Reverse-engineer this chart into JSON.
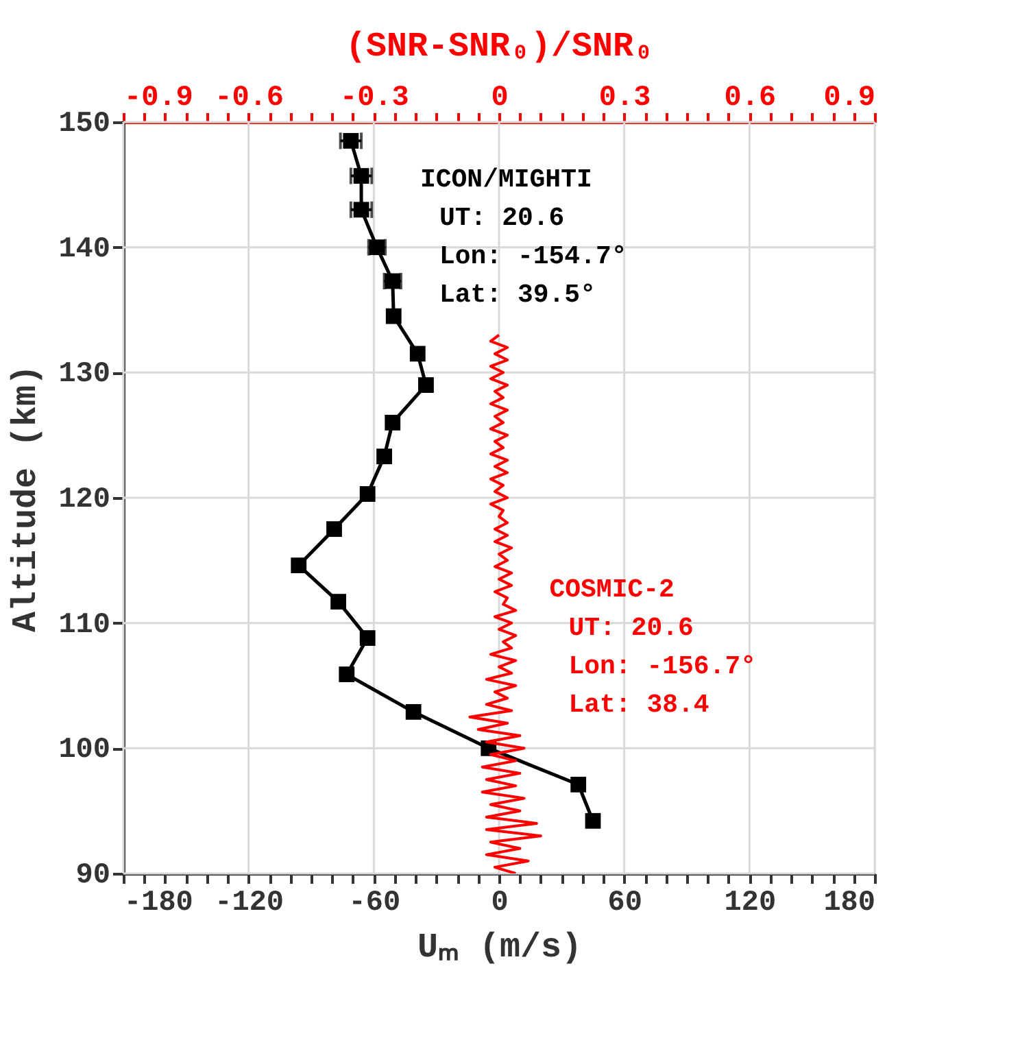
{
  "chart_data": {
    "type": "line",
    "xlabel": "Uₘ (m/s)",
    "x2label": "(SNR-SNR₀)/SNR₀",
    "ylabel": "Altitude (km)",
    "xlim": [
      -180,
      180
    ],
    "xticks": [
      -180,
      {
        "value": -170,
        "label": null
      },
      {
        "value": -160,
        "label": null
      },
      {
        "value": -150,
        "label": null
      },
      {
        "value": -140,
        "label": null
      },
      {
        "value": -130,
        "label": null
      },
      -120,
      {
        "value": -110,
        "label": null
      },
      {
        "value": -100,
        "label": null
      },
      {
        "value": -90,
        "label": null
      },
      {
        "value": -80,
        "label": null
      },
      {
        "value": -70,
        "label": null
      },
      -60,
      {
        "value": -50,
        "label": null
      },
      {
        "value": -40,
        "label": null
      },
      {
        "value": -30,
        "label": null
      },
      {
        "value": -20,
        "label": null
      },
      {
        "value": -10,
        "label": null
      },
      0,
      {
        "value": 10,
        "label": null
      },
      {
        "value": 20,
        "label": null
      },
      {
        "value": 30,
        "label": null
      },
      {
        "value": 40,
        "label": null
      },
      {
        "value": 50,
        "label": null
      },
      60,
      {
        "value": 70,
        "label": null
      },
      {
        "value": 80,
        "label": null
      },
      {
        "value": 90,
        "label": null
      },
      {
        "value": 100,
        "label": null
      },
      {
        "value": 110,
        "label": null
      },
      120,
      {
        "value": 130,
        "label": null
      },
      {
        "value": 140,
        "label": null
      },
      {
        "value": 150,
        "label": null
      },
      {
        "value": 160,
        "label": null
      },
      {
        "value": 170,
        "label": null
      },
      180
    ],
    "x2lim": [
      -0.9,
      0.9
    ],
    "x2ticks": [
      -0.9,
      {
        "value": -0.85,
        "label": null
      },
      {
        "value": -0.8,
        "label": null
      },
      {
        "value": -0.75,
        "label": null
      },
      {
        "value": -0.7,
        "label": null
      },
      {
        "value": -0.65,
        "label": null
      },
      -0.6,
      {
        "value": -0.55,
        "label": null
      },
      {
        "value": -0.5,
        "label": null
      },
      {
        "value": -0.45,
        "label": null
      },
      {
        "value": -0.4,
        "label": null
      },
      {
        "value": -0.35,
        "label": null
      },
      -0.3,
      {
        "value": -0.25,
        "label": null
      },
      {
        "value": -0.2,
        "label": null
      },
      {
        "value": -0.15,
        "label": null
      },
      {
        "value": -0.1,
        "label": null
      },
      {
        "value": -0.05,
        "label": null
      },
      0,
      {
        "value": 0.05,
        "label": null
      },
      {
        "value": 0.1,
        "label": null
      },
      {
        "value": 0.15,
        "label": null
      },
      {
        "value": 0.2,
        "label": null
      },
      {
        "value": 0.25,
        "label": null
      },
      0.3,
      {
        "value": 0.35,
        "label": null
      },
      {
        "value": 0.4,
        "label": null
      },
      {
        "value": 0.45,
        "label": null
      },
      {
        "value": 0.5,
        "label": null
      },
      {
        "value": 0.55,
        "label": null
      },
      0.6,
      {
        "value": 0.65,
        "label": null
      },
      {
        "value": 0.7,
        "label": null
      },
      {
        "value": 0.75,
        "label": null
      },
      {
        "value": 0.8,
        "label": null
      },
      {
        "value": 0.85,
        "label": null
      },
      0.9
    ],
    "ylim": [
      90,
      150
    ],
    "yticks": [
      90,
      100,
      110,
      120,
      130,
      140,
      150
    ],
    "grid": true,
    "legend": false,
    "series": [
      {
        "name": "ICON/MIGHTI",
        "color": "#000000",
        "marker": "square",
        "line_style": "solid",
        "x": [
          -71,
          -66,
          -66,
          -58.5,
          -51,
          -50.5,
          -39,
          -35,
          -51,
          -55,
          -63,
          -79,
          -96,
          -77,
          -63,
          -73,
          -41,
          -5,
          38,
          45
        ],
        "values": [
          148.5,
          145.7,
          143.0,
          140.0,
          137.3,
          134.5,
          131.5,
          129.0,
          126.0,
          123.3,
          120.3,
          117.5,
          114.6,
          111.7,
          108.8,
          105.9,
          102.9,
          100.0,
          97.1,
          94.2
        ],
        "xerrors": [
          5,
          5,
          5,
          4,
          4,
          null,
          null,
          null,
          null,
          null,
          null,
          null,
          null,
          null,
          null,
          null,
          null,
          null,
          null,
          null
        ]
      },
      {
        "name": "COSMIC-2",
        "color": "#ff0000",
        "axis": "x2",
        "marker": "none",
        "line_style": "solid",
        "x": [
          0.0,
          -0.02,
          0.02,
          -0.01,
          0.02,
          -0.02,
          0.01,
          -0.02,
          0.02,
          -0.01,
          0.01,
          -0.02,
          0.02,
          -0.01,
          0.01,
          -0.02,
          0.02,
          -0.01,
          0.01,
          -0.02,
          0.02,
          -0.01,
          0.02,
          -0.02,
          0.01,
          -0.01,
          0.02,
          -0.02,
          0.01,
          0.0,
          0.02,
          -0.01,
          0.02,
          -0.01,
          0.03,
          0.0,
          0.02,
          -0.01,
          0.03,
          0.0,
          0.03,
          -0.01,
          0.02,
          0.01,
          0.04,
          -0.01,
          0.03,
          0.0,
          0.04,
          0.01,
          0.03,
          -0.02,
          0.04,
          0.0,
          0.03,
          -0.03,
          0.04,
          -0.01,
          0.02,
          -0.03,
          0.03,
          -0.07,
          0.02,
          -0.05,
          0.05,
          -0.03,
          0.06,
          -0.02,
          0.04,
          -0.04,
          0.05,
          -0.03,
          0.04,
          -0.04,
          0.06,
          -0.02,
          0.05,
          -0.03,
          0.09,
          -0.03,
          0.1,
          -0.02,
          0.05,
          -0.03,
          0.07,
          -0.01,
          0.04
        ],
        "values": [
          133,
          132.5,
          132,
          131.5,
          131,
          130.5,
          130,
          129.5,
          129,
          128.5,
          128,
          127.5,
          127,
          126.5,
          126,
          125.5,
          125,
          124.5,
          124,
          123.5,
          123,
          122.5,
          122,
          121.5,
          121,
          120.5,
          120,
          119.5,
          119,
          118.5,
          118,
          117.5,
          117,
          116.5,
          116,
          115.5,
          115,
          114.5,
          114,
          113.5,
          113,
          112.5,
          112,
          111.5,
          111,
          110.5,
          110,
          109.5,
          109,
          108.5,
          108,
          107.5,
          107,
          106.5,
          106,
          105.5,
          105,
          104.5,
          104,
          103.5,
          103,
          102.5,
          102,
          101.5,
          101,
          100.5,
          100,
          99.5,
          99,
          98.5,
          98,
          97.5,
          97,
          96.5,
          96,
          95.5,
          95,
          94.5,
          94,
          93.5,
          93,
          92.5,
          92,
          91.5,
          91,
          90.5,
          90
        ]
      }
    ],
    "annotations": [
      "UT: 20.6",
      "Lon: -154.7°",
      "Lat: 39.5°",
      "UT: 20.6",
      "Lon: -156.7°",
      "Lat: 38.4"
    ]
  }
}
